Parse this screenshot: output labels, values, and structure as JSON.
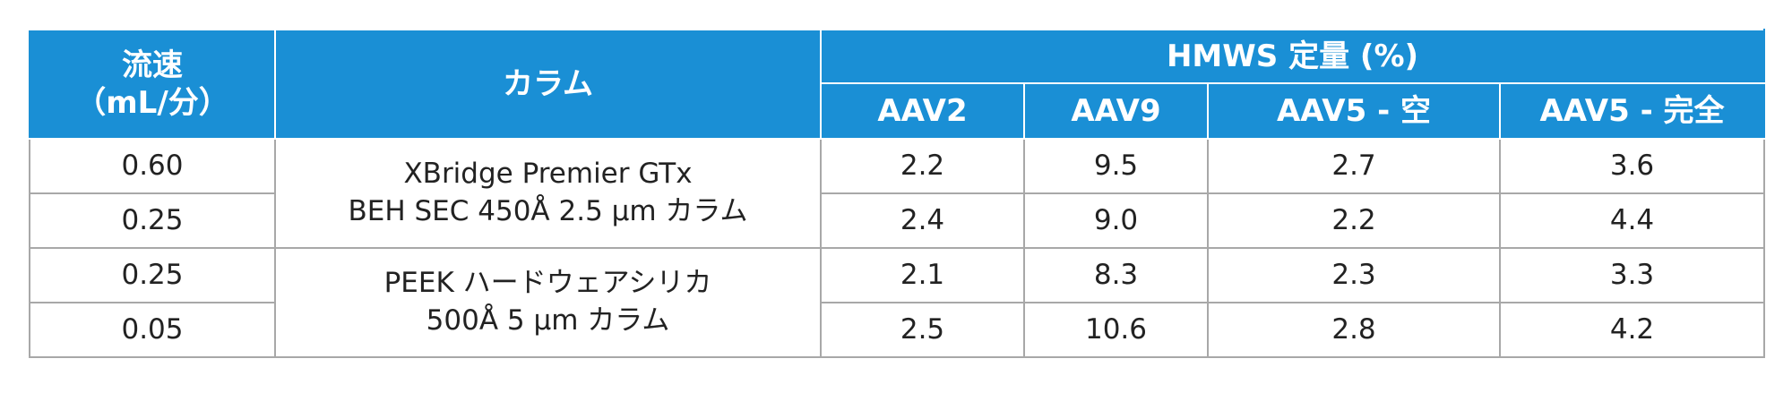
{
  "header": {
    "flow_rate": [
      "流速",
      "（mL/分）"
    ],
    "column": "カラム",
    "hmws": "HMWS 定量 (%)",
    "samples": [
      "AAV2",
      "AAV9",
      "AAV5 - 空",
      "AAV5 - 完全"
    ]
  },
  "groups": [
    {
      "column": [
        "XBridge Premier GTx",
        "BEH SEC 450Å 2.5 µm カラム"
      ],
      "rows": [
        {
          "flow_rate": "0.60",
          "values": [
            "2.2",
            "9.5",
            "2.7",
            "3.6"
          ]
        },
        {
          "flow_rate": "0.25",
          "values": [
            "2.4",
            "9.0",
            "2.2",
            "4.4"
          ]
        }
      ]
    },
    {
      "column": [
        "PEEK ハードウェアシリカ",
        "500Å 5 µm カラム"
      ],
      "rows": [
        {
          "flow_rate": "0.25",
          "values": [
            "2.1",
            "8.3",
            "2.3",
            "3.3"
          ]
        },
        {
          "flow_rate": "0.05",
          "values": [
            "2.5",
            "10.6",
            "2.8",
            "4.2"
          ]
        }
      ]
    }
  ]
}
